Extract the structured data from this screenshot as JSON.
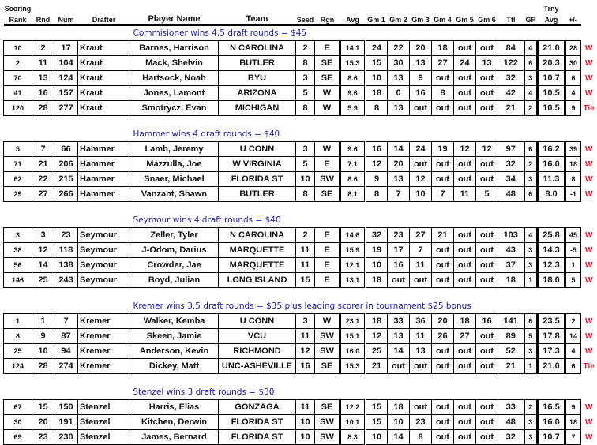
{
  "headers": {
    "rank_top": "Scoring",
    "rank": "Rank",
    "rnd": "Rnd",
    "num": "Num",
    "drafter": "Drafter",
    "player": "Player Name",
    "team": "Team",
    "seed": "Seed",
    "rgn": "Rgn",
    "avg": "Avg",
    "gm1": "Gm 1",
    "gm2": "Gm 2",
    "gm3": "Gm 3",
    "gm4": "Gm 4",
    "gm5": "Gm 5",
    "gm6": "Gm 6",
    "ttl": "Ttl",
    "gp": "GP",
    "trny_top": "Trny",
    "trny": "Avg",
    "pm": "+/-"
  },
  "colors": {
    "title": "#1a1aa8",
    "result": "#e8102a"
  },
  "sections": [
    {
      "title": "Commisioner wins 4.5 draft rounds = $45",
      "rows": [
        [
          "10",
          "2",
          "17",
          "Kraut",
          "Barnes, Harrison",
          "N CAROLINA",
          "2",
          "E",
          "14.1",
          "24",
          "22",
          "20",
          "18",
          "out",
          "out",
          "84",
          "4",
          "21.0",
          "28",
          "W"
        ],
        [
          "2",
          "11",
          "104",
          "Kraut",
          "Mack, Shelvin",
          "BUTLER",
          "8",
          "SE",
          "15.3",
          "15",
          "30",
          "13",
          "27",
          "24",
          "13",
          "122",
          "6",
          "20.3",
          "30",
          "W"
        ],
        [
          "70",
          "13",
          "124",
          "Kraut",
          "Hartsock, Noah",
          "BYU",
          "3",
          "SE",
          "8.6",
          "10",
          "13",
          "9",
          "out",
          "out",
          "out",
          "32",
          "3",
          "10.7",
          "6",
          "W"
        ],
        [
          "41",
          "16",
          "157",
          "Kraut",
          "Jones, Lamont",
          "ARIZONA",
          "5",
          "W",
          "9.6",
          "18",
          "0",
          "16",
          "8",
          "out",
          "out",
          "42",
          "4",
          "10.5",
          "4",
          "W"
        ],
        [
          "120",
          "28",
          "277",
          "Kraut",
          "Smotrycz, Evan",
          "MICHIGAN",
          "8",
          "W",
          "5.9",
          "8",
          "13",
          "out",
          "out",
          "out",
          "out",
          "21",
          "2",
          "10.5",
          "9",
          "Tie"
        ]
      ]
    },
    {
      "title": "Hammer wins 4 draft rounds = $40",
      "rows": [
        [
          "5",
          "7",
          "66",
          "Hammer",
          "Lamb, Jeremy",
          "U CONN",
          "3",
          "W",
          "9.6",
          "16",
          "14",
          "24",
          "19",
          "12",
          "12",
          "97",
          "6",
          "16.2",
          "39",
          "W"
        ],
        [
          "71",
          "21",
          "206",
          "Hammer",
          "Mazzulla, Joe",
          "W VIRGINIA",
          "5",
          "E",
          "7.1",
          "12",
          "20",
          "out",
          "out",
          "out",
          "out",
          "32",
          "2",
          "16.0",
          "18",
          "W"
        ],
        [
          "62",
          "22",
          "215",
          "Hammer",
          "Snaer, Michael",
          "FLORIDA ST",
          "10",
          "SW",
          "8.6",
          "9",
          "13",
          "12",
          "out",
          "out",
          "out",
          "34",
          "3",
          "11.3",
          "8",
          "W"
        ],
        [
          "29",
          "27",
          "266",
          "Hammer",
          "Vanzant, Shawn",
          "BUTLER",
          "8",
          "SE",
          "8.1",
          "8",
          "7",
          "10",
          "7",
          "11",
          "5",
          "48",
          "6",
          "8.0",
          "-1",
          "W"
        ]
      ]
    },
    {
      "title": "Seymour wins 4 draft rounds = $40",
      "rows": [
        [
          "3",
          "3",
          "23",
          "Seymour",
          "Zeller, Tyler",
          "N CAROLINA",
          "2",
          "E",
          "14.6",
          "32",
          "23",
          "27",
          "21",
          "out",
          "out",
          "103",
          "4",
          "25.8",
          "45",
          "W"
        ],
        [
          "38",
          "12",
          "118",
          "Seymour",
          "J-Odom, Darius",
          "MARQUETTE",
          "11",
          "E",
          "15.9",
          "19",
          "17",
          "7",
          "out",
          "out",
          "out",
          "43",
          "3",
          "14.3",
          "-5",
          "W"
        ],
        [
          "56",
          "14",
          "138",
          "Seymour",
          "Crowder, Jae",
          "MARQUETTE",
          "11",
          "E",
          "12.1",
          "10",
          "16",
          "11",
          "out",
          "out",
          "out",
          "37",
          "3",
          "12.3",
          "1",
          "W"
        ],
        [
          "146",
          "25",
          "243",
          "Seymour",
          "Boyd, Julian",
          "LONG ISLAND",
          "15",
          "E",
          "13.1",
          "18",
          "out",
          "out",
          "out",
          "out",
          "out",
          "18",
          "1",
          "18.0",
          "5",
          "W"
        ]
      ]
    },
    {
      "title": "Kremer wins 3.5 draft rounds = $35 plus leading scorer in tournament $25 bonus",
      "rows": [
        [
          "1",
          "1",
          "7",
          "Kremer",
          "Walker, Kemba",
          "U CONN",
          "3",
          "W",
          "23.1",
          "18",
          "33",
          "36",
          "20",
          "18",
          "16",
          "141",
          "6",
          "23.5",
          "2",
          "W"
        ],
        [
          "8",
          "9",
          "87",
          "Kremer",
          "Skeen, Jamie",
          "VCU",
          "11",
          "SW",
          "15.1",
          "12",
          "13",
          "11",
          "26",
          "27",
          "out",
          "89",
          "5",
          "17.8",
          "14",
          "W"
        ],
        [
          "25",
          "10",
          "94",
          "Kremer",
          "Anderson, Kevin",
          "RICHMOND",
          "12",
          "SW",
          "16.0",
          "25",
          "14",
          "13",
          "out",
          "out",
          "out",
          "52",
          "3",
          "17.3",
          "4",
          "W"
        ],
        [
          "124",
          "28",
          "274",
          "Kremer",
          "Dickey, Matt",
          "UNC-ASHEVILLE",
          "16",
          "SE",
          "15.3",
          "21",
          "out",
          "out",
          "out",
          "out",
          "out",
          "21",
          "1",
          "21.0",
          "6",
          "Tie"
        ]
      ]
    },
    {
      "title": "Stenzel wins 3 draft rounds = $30",
      "rows": [
        [
          "67",
          "15",
          "150",
          "Stenzel",
          "Harris, Elias",
          "GONZAGA",
          "11",
          "SE",
          "12.2",
          "15",
          "18",
          "out",
          "out",
          "out",
          "out",
          "33",
          "2",
          "16.5",
          "9",
          "W"
        ],
        [
          "30",
          "20",
          "191",
          "Stenzel",
          "Kitchen, Derwin",
          "FLORIDA ST",
          "10",
          "SW",
          "10.1",
          "15",
          "10",
          "23",
          "out",
          "out",
          "out",
          "48",
          "3",
          "16.0",
          "18",
          "W"
        ],
        [
          "69",
          "23",
          "230",
          "Stenzel",
          "James, Bernard",
          "FLORIDA ST",
          "10",
          "SW",
          "8.3",
          "10",
          "14",
          "8",
          "out",
          "out",
          "out",
          "32",
          "3",
          "10.7",
          "7",
          "W"
        ]
      ]
    }
  ]
}
